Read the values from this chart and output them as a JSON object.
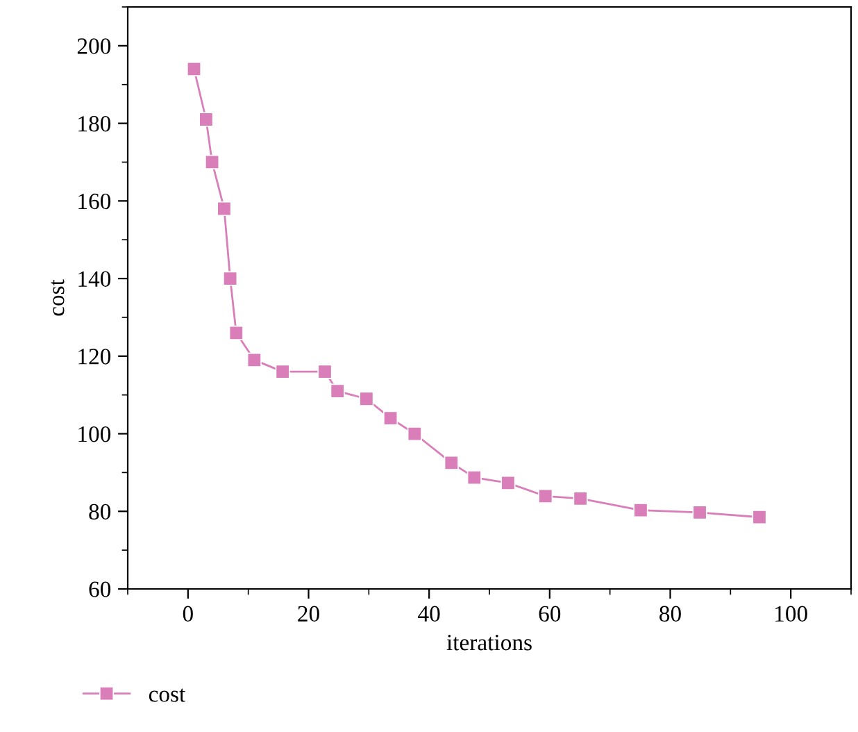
{
  "chart_data": {
    "type": "line",
    "xlabel": "iterations",
    "ylabel": "cost",
    "x": [
      1,
      3,
      4,
      6,
      7,
      8,
      11,
      15.7,
      22.7,
      24.8,
      29.6,
      33.6,
      37.6,
      43.7,
      47.5,
      53.1,
      59.3,
      65.1,
      75.1,
      84.9,
      94.8
    ],
    "series": [
      {
        "name": "cost",
        "color": "#d97eb8",
        "values": [
          194,
          181,
          170,
          158,
          140,
          126,
          119,
          116,
          116,
          111,
          109,
          104,
          100,
          92.5,
          88.7,
          87.3,
          83.9,
          83.3,
          80.3,
          79.7,
          78.5
        ]
      }
    ],
    "xlim": [
      -10,
      110
    ],
    "xticks": [
      0,
      20,
      40,
      60,
      80,
      100
    ],
    "ylim": [
      60,
      210
    ],
    "yticks": [
      60,
      80,
      100,
      120,
      140,
      160,
      180,
      200
    ],
    "marker": "square",
    "line_style": "solid",
    "legend": "bottom left",
    "grid": false
  }
}
